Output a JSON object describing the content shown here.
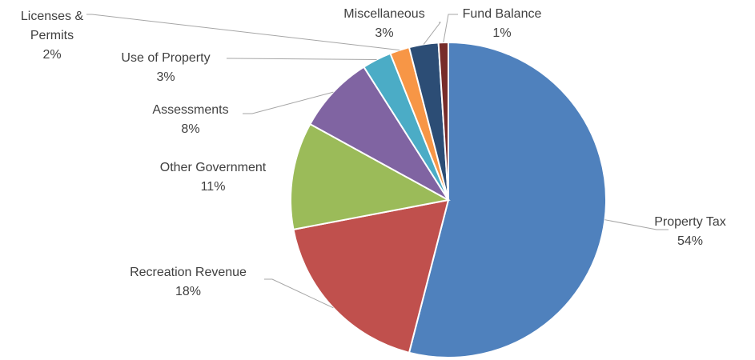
{
  "chart_data": {
    "type": "pie",
    "categories": [
      "Property Tax",
      "Recreation Revenue",
      "Other Government",
      "Assessments",
      "Use of Property",
      "Licenses & Permits",
      "Miscellaneous",
      "Fund Balance"
    ],
    "values": [
      54,
      18,
      11,
      8,
      3,
      2,
      3,
      1
    ],
    "value_labels": [
      "54%",
      "18%",
      "11%",
      "8%",
      "3%",
      "2%",
      "3%",
      "1%"
    ],
    "colors": [
      "#4f81bd",
      "#c0504d",
      "#9bbb59",
      "#8064a2",
      "#4bacc6",
      "#f79646",
      "#2c4d75",
      "#772c2a"
    ]
  }
}
